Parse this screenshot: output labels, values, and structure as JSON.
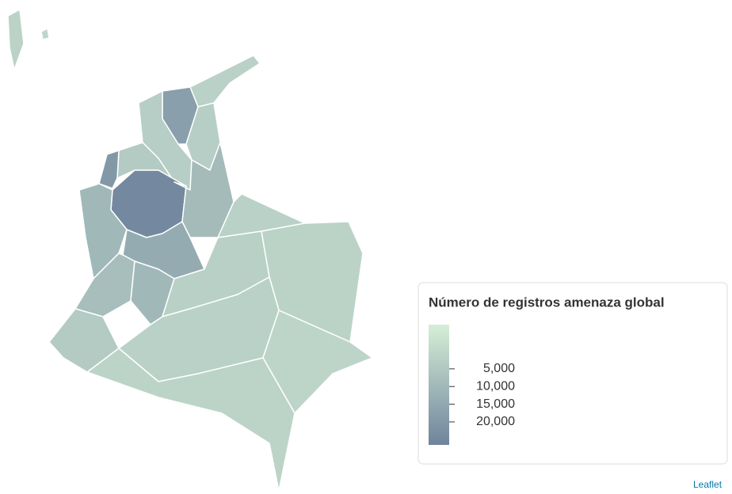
{
  "map": {
    "regions": {
      "values": [
        1500,
        300,
        2000,
        18000,
        3000,
        3000,
        4000,
        20000,
        25000,
        10000,
        9000,
        14000,
        8000,
        10000,
        4000,
        2500,
        2000,
        1500,
        2000,
        800,
        1000
      ]
    },
    "legend": {
      "title": "Número de registros amenaza global",
      "ticks": [
        {
          "value": 5000,
          "label": "5,000"
        },
        {
          "value": 10000,
          "label": "10,000"
        },
        {
          "value": 15000,
          "label": "15,000"
        },
        {
          "value": 20000,
          "label": "20,000"
        }
      ],
      "lim": [
        -7500,
        26500
      ],
      "colors": [
        "#d6efd7",
        "#6f849c"
      ]
    },
    "attribution": "Leaflet"
  }
}
